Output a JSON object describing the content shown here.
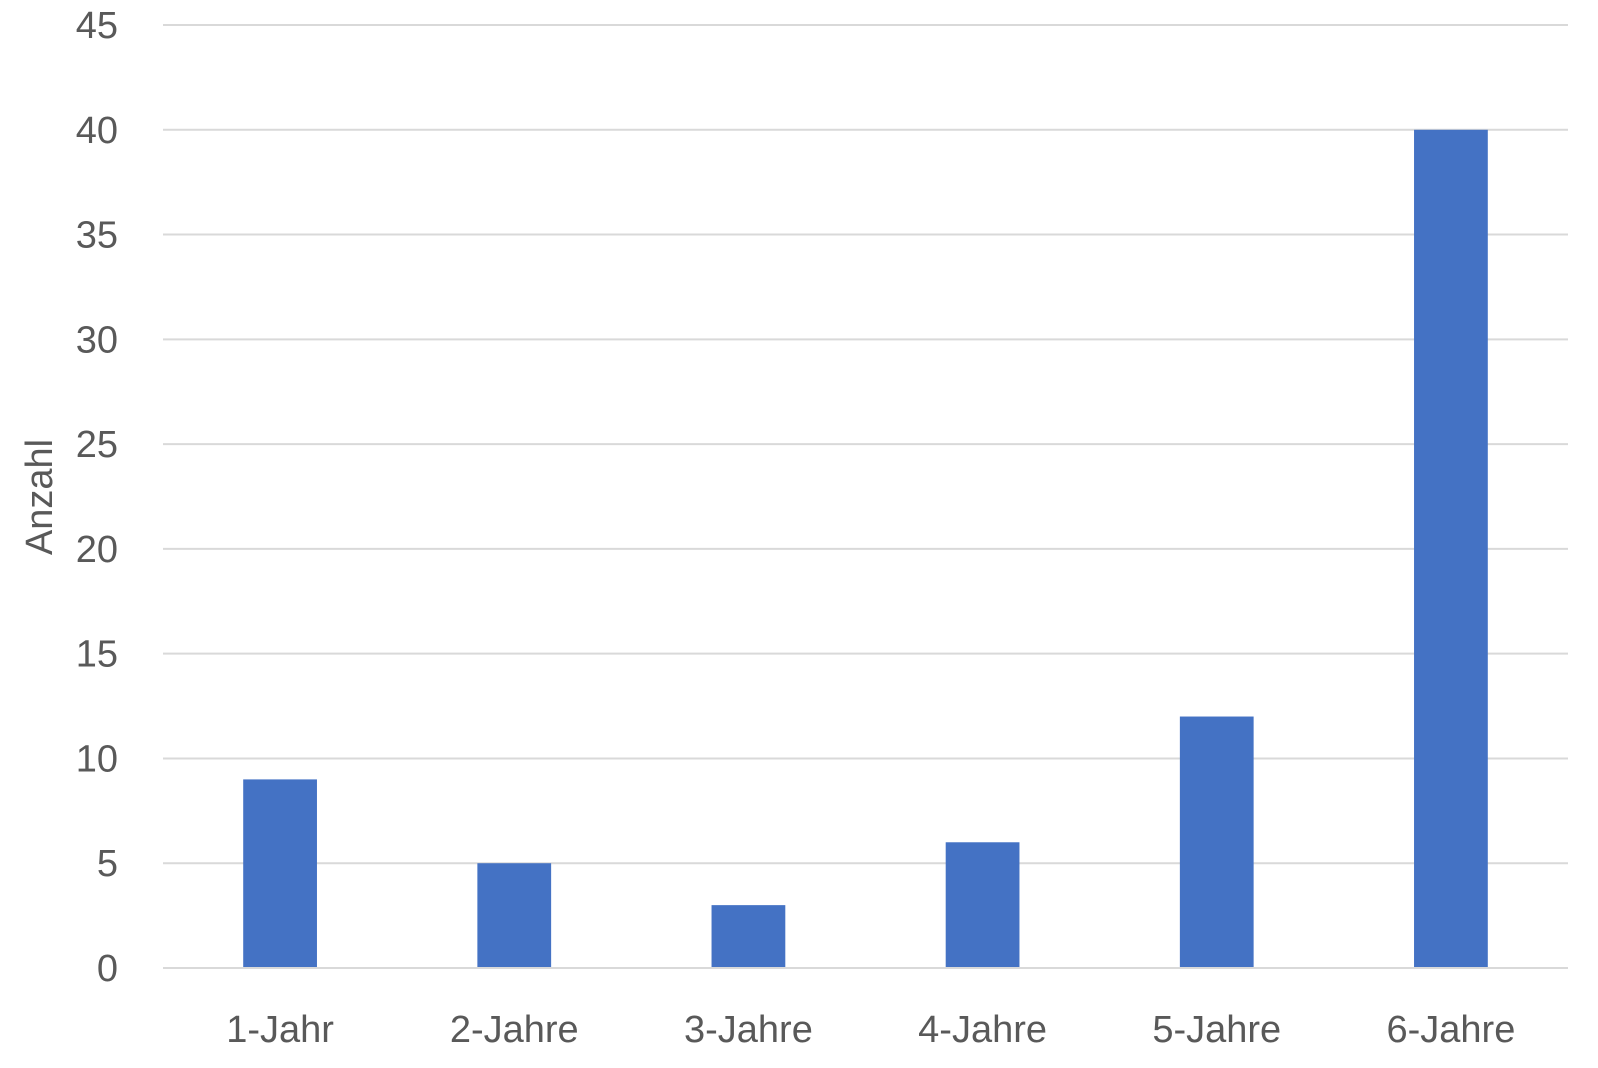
{
  "chart_data": {
    "type": "bar",
    "title": "",
    "xlabel": "",
    "ylabel": "Anzahl",
    "categories": [
      "1-Jahr",
      "2-Jahre",
      "3-Jahre",
      "4-Jahre",
      "5-Jahre",
      "6-Jahre"
    ],
    "values": [
      9,
      5,
      3,
      6,
      12,
      40
    ],
    "ylim": [
      0,
      45
    ],
    "yticks": [
      0,
      5,
      10,
      15,
      20,
      25,
      30,
      35,
      40,
      45
    ],
    "grid": true,
    "legend": "none",
    "bar_color": "#4472C4",
    "grid_color": "#D9D9D9",
    "text_color": "#595959"
  }
}
